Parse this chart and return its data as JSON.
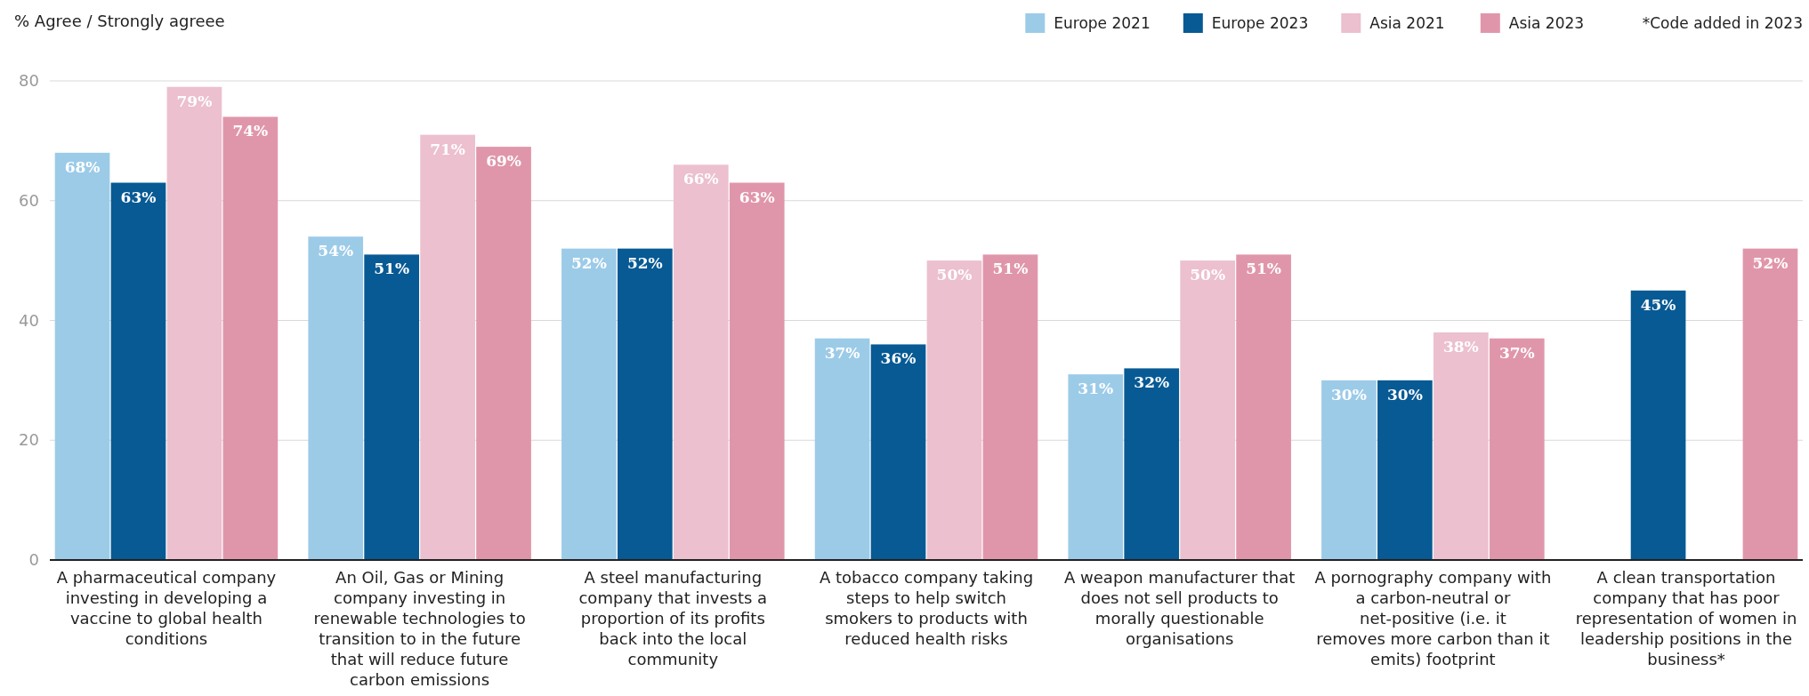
{
  "chart_data": {
    "type": "bar",
    "ylabel": "% Agree / Strongly agreee",
    "categories": [
      "A pharmaceutical company investing in developing a vaccine to global health conditions",
      "An Oil, Gas or Mining company investing in renewable technologies to transition to in the future that will reduce future carbon emissions",
      "A steel manufacturing company that invests a proportion of its profits back into the local community",
      "A tobacco company taking steps to help switch smokers to products with reduced health risks",
      "A weapon manufacturer that does not sell products to morally questionable organisations",
      "A pornography company with a carbon-neutral or net-positive (i.e. it removes more carbon than it emits) footprint",
      "A clean transportation company that has poor representation of women in leadership positions in the business*"
    ],
    "series": [
      {
        "name": "Europe 2021",
        "color": "#9ccbe8",
        "values": [
          68,
          54,
          52,
          37,
          31,
          30,
          null
        ],
        "value_labels": [
          "68%",
          "54%",
          "52%",
          "37%",
          "31%",
          "30%",
          null
        ]
      },
      {
        "name": "Europe 2023",
        "color": "#075a94",
        "values": [
          63,
          51,
          52,
          36,
          32,
          30,
          45
        ],
        "value_labels": [
          "63%",
          "51%",
          "52%",
          "36%",
          "32%",
          "30%",
          "45%"
        ]
      },
      {
        "name": "Asia 2021",
        "color": "#ecc0ce",
        "values": [
          79,
          71,
          66,
          50,
          50,
          38,
          null
        ],
        "value_labels": [
          "79%",
          "71%",
          "66%",
          "50%",
          "50%",
          "38%",
          null
        ]
      },
      {
        "name": "Asia 2023",
        "color": "#e096aa",
        "values": [
          74,
          69,
          63,
          51,
          51,
          37,
          52
        ],
        "value_labels": [
          "74%",
          "69%",
          "63%",
          "51%",
          "51%",
          "37%",
          "52%"
        ]
      }
    ],
    "ylim": [
      0,
      80
    ],
    "yticks": [
      0,
      20,
      40,
      60,
      80
    ],
    "grid": "y",
    "legend": "top right",
    "annotations": [
      "*Code added in 2023"
    ]
  }
}
